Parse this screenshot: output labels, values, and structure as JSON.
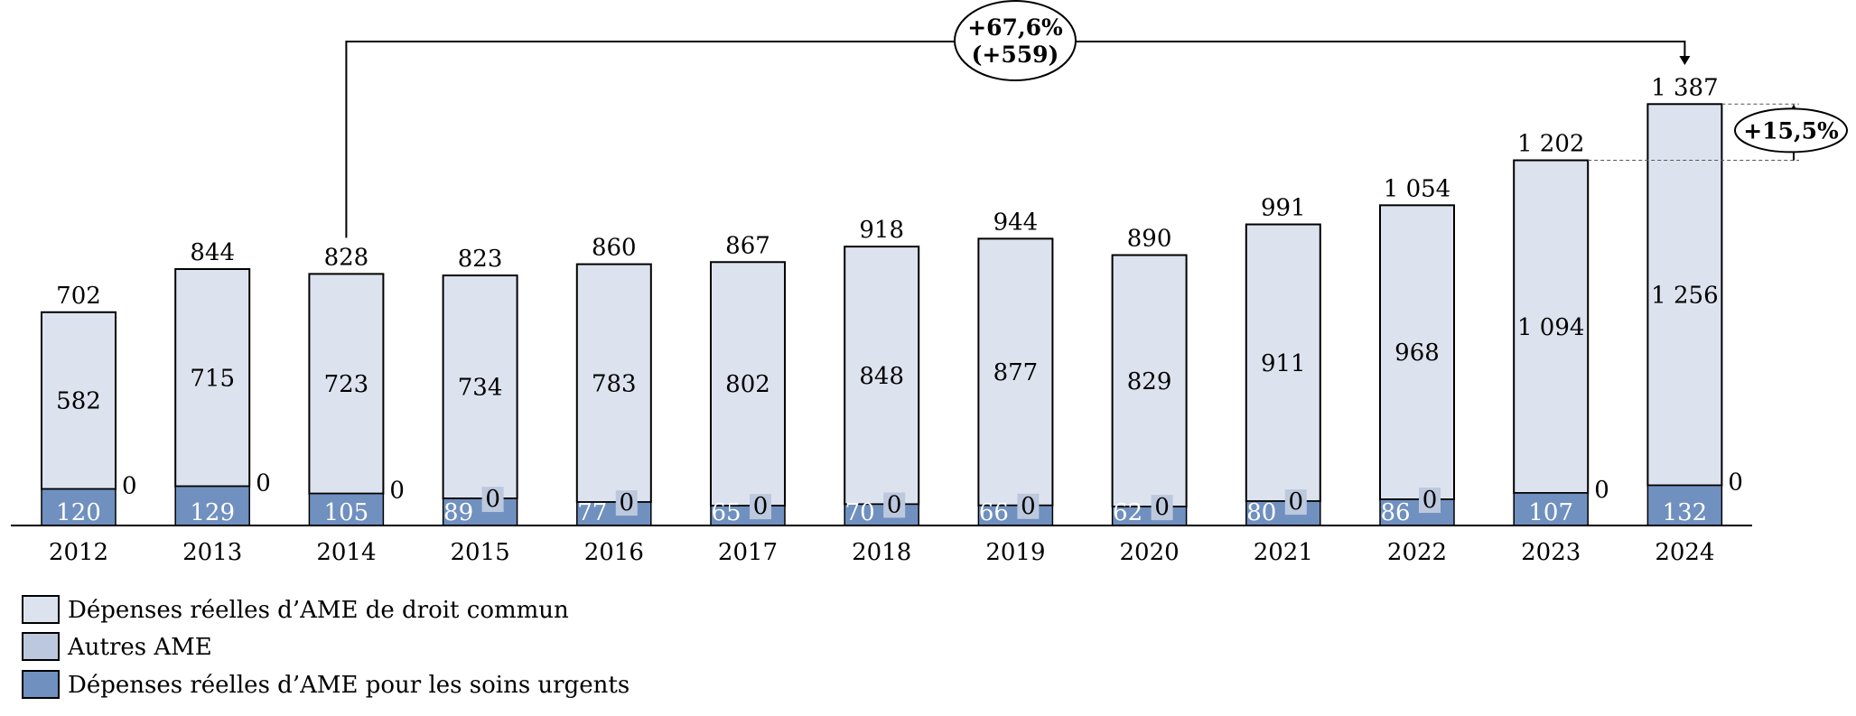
{
  "chart_data": {
    "type": "bar",
    "stacked": true,
    "categories": [
      "2012",
      "2013",
      "2014",
      "2015",
      "2016",
      "2017",
      "2018",
      "2019",
      "2020",
      "2021",
      "2022",
      "2023",
      "2024"
    ],
    "series": [
      {
        "name": "Dépenses réelles d’AME de droit commun",
        "values": [
          582,
          715,
          723,
          734,
          783,
          802,
          848,
          877,
          829,
          911,
          968,
          1094,
          1256
        ],
        "labels": [
          "582",
          "715",
          "723",
          "734",
          "783",
          "802",
          "848",
          "877",
          "829",
          "911",
          "968",
          "1 094",
          "1 256"
        ],
        "color": "#dde3ee"
      },
      {
        "name": "Autres AME",
        "values": [
          0,
          0,
          0,
          0,
          0,
          0,
          0,
          0,
          0,
          0,
          0,
          0,
          0
        ],
        "labels": [
          "0",
          "0",
          "0",
          "0",
          "0",
          "0",
          "0",
          "0",
          "0",
          "0",
          "0",
          "0",
          "0"
        ],
        "color": "#bcc8dd"
      },
      {
        "name": "Dépenses réelles d’AME pour les soins urgents",
        "values": [
          120,
          129,
          105,
          89,
          77,
          65,
          70,
          66,
          62,
          80,
          86,
          107,
          132
        ],
        "labels": [
          "120",
          "129",
          "105",
          "89",
          "77",
          "65",
          "70",
          "66",
          "62",
          "80",
          "86",
          "107",
          "132"
        ],
        "color": "#7090bf"
      }
    ],
    "totals": [
      702,
      844,
      828,
      823,
      860,
      867,
      918,
      944,
      890,
      991,
      1054,
      1202,
      1387
    ],
    "total_labels": [
      "702",
      "844",
      "828",
      "823",
      "860",
      "867",
      "918",
      "944",
      "890",
      "991",
      "1 054",
      "1 202",
      "1 387"
    ],
    "ylim": [
      0,
      1400
    ],
    "legend_position": "bottom-left",
    "annotations": [
      {
        "text_line1": "+67,6%",
        "text_line2": "(+559)",
        "from": "2014",
        "to": "2024"
      },
      {
        "text": "+15,5%",
        "from": "2023",
        "to": "2024"
      }
    ]
  }
}
